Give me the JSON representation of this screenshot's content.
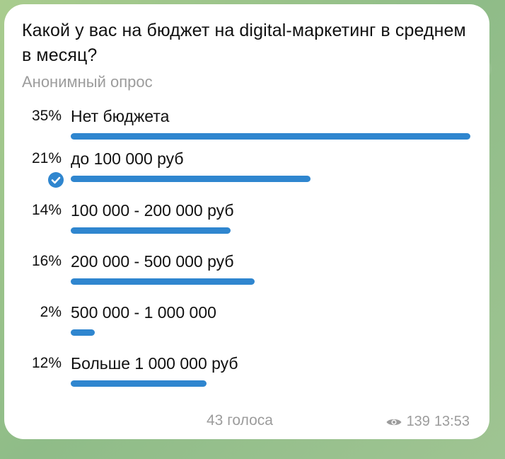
{
  "poll": {
    "question": "Какой у вас на бюджет на digital-маркетинг в среднем в месяц?",
    "type": "Анонимный опрос",
    "options": [
      {
        "percent": "35%",
        "label": "Нет бюджета",
        "bar_fraction": 1.0,
        "selected": false
      },
      {
        "percent": "21%",
        "label": "до 100 000 руб",
        "bar_fraction": 0.6,
        "selected": true
      },
      {
        "percent": "14%",
        "label": "100 000 - 200 000 руб",
        "bar_fraction": 0.4,
        "selected": false
      },
      {
        "percent": "16%",
        "label": "200 000 - 500 000 руб",
        "bar_fraction": 0.46,
        "selected": false
      },
      {
        "percent": "2%",
        "label": "500 000 - 1 000 000",
        "bar_fraction": 0.06,
        "selected": false
      },
      {
        "percent": "12%",
        "label": "Больше 1 000 000 руб",
        "bar_fraction": 0.34,
        "selected": false
      }
    ],
    "votes": "43 голоса",
    "views": "139",
    "time": "13:53"
  },
  "colors": {
    "accent": "#2f86cf",
    "muted": "#9c9c9c",
    "wallpaper": "#9cc38a"
  },
  "icons": {
    "selected": "check-circle-icon",
    "views": "eye-icon"
  }
}
